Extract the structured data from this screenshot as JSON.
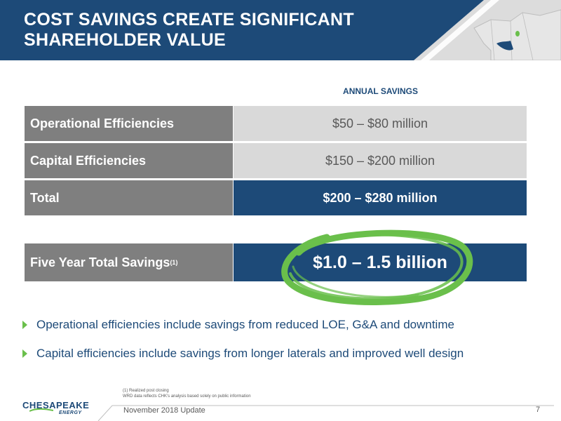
{
  "header": {
    "title": "COST SAVINGS CREATE SIGNIFICANT\nSHAREHOLDER VALUE"
  },
  "table": {
    "column_header": "ANNUAL SAVINGS",
    "rows": [
      {
        "label": "Operational Efficiencies",
        "value": "$50 – $80 million"
      },
      {
        "label": "Capital Efficiencies",
        "value": "$150 – $200 million"
      },
      {
        "label": "Total",
        "value": "$200 – $280 million"
      }
    ],
    "five_year": {
      "label": "Five Year Total Savings",
      "footnote_marker": "(1)",
      "value": "$1.0 – 1.5 billion"
    }
  },
  "bullets": [
    "Operational efficiencies include savings from reduced LOE, G&A and downtime",
    "Capital efficiencies include savings from longer laterals and improved well design"
  ],
  "footnote": "(1)  Realized post closing\nWRD data reflects CHK's analysis based solely on public information",
  "footer": {
    "text": "November 2018 Update",
    "page_number": "7"
  },
  "logo": {
    "word_part1": "CH",
    "word_part2": "ESAPEAKE",
    "sub": "ENERGY"
  },
  "colors": {
    "navy": "#1d4a78",
    "gray": "#7f7f7f",
    "light_gray": "#d9d9d9",
    "green": "#6abf4b"
  }
}
